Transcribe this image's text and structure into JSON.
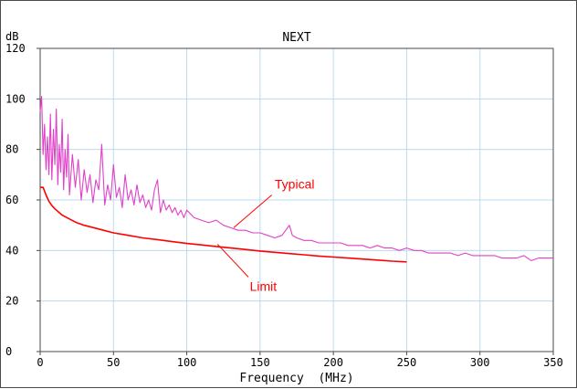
{
  "chart_data": {
    "type": "line",
    "title": "NEXT",
    "ylabel": "dB",
    "xlabel": "Frequency  (MHz)",
    "xlim": [
      0,
      350
    ],
    "ylim": [
      0,
      120
    ],
    "x_ticks": [
      0,
      50,
      100,
      150,
      200,
      250,
      300,
      350
    ],
    "y_ticks": [
      0,
      20,
      40,
      60,
      80,
      100,
      120
    ],
    "x_tick_labels": [
      "0",
      "50",
      "100",
      "150",
      "200",
      "250",
      "300",
      "350"
    ],
    "y_tick_labels": [
      "0",
      "20",
      "40",
      "60",
      "80",
      "100",
      "120"
    ],
    "grid": true,
    "annotations": [
      {
        "text": "Typical",
        "color": "#ff0000"
      },
      {
        "text": "Limit",
        "color": "#ff0000"
      }
    ],
    "series": [
      {
        "name": "Typical",
        "color": "#e040c8",
        "x": [
          0,
          1,
          2,
          3,
          4,
          5,
          6,
          7,
          8,
          9,
          10,
          11,
          12,
          13,
          14,
          15,
          16,
          17,
          18,
          19,
          20,
          22,
          24,
          26,
          28,
          30,
          32,
          34,
          36,
          38,
          40,
          42,
          44,
          46,
          48,
          50,
          52,
          54,
          56,
          58,
          60,
          62,
          64,
          66,
          68,
          70,
          72,
          74,
          76,
          78,
          80,
          82,
          84,
          86,
          88,
          90,
          92,
          94,
          96,
          98,
          100,
          105,
          110,
          115,
          120,
          125,
          130,
          135,
          140,
          145,
          150,
          155,
          160,
          165,
          170,
          172,
          175,
          180,
          185,
          190,
          195,
          200,
          205,
          210,
          215,
          220,
          225,
          230,
          235,
          240,
          245,
          250,
          255,
          260,
          265,
          270,
          275,
          280,
          285,
          290,
          295,
          300,
          305,
          310,
          315,
          320,
          325,
          330,
          335,
          340,
          345,
          350
        ],
        "y": [
          95,
          101,
          78,
          90,
          72,
          85,
          70,
          94,
          68,
          88,
          74,
          96,
          66,
          82,
          71,
          92,
          64,
          80,
          69,
          86,
          62,
          78,
          65,
          76,
          60,
          72,
          63,
          70,
          59,
          68,
          64,
          82,
          58,
          66,
          60,
          74,
          61,
          65,
          57,
          70,
          60,
          64,
          58,
          66,
          59,
          62,
          57,
          60,
          56,
          64,
          68,
          55,
          60,
          56,
          58,
          55,
          57,
          54,
          56,
          53,
          56,
          53,
          52,
          51,
          52,
          50,
          49,
          48,
          48,
          47,
          47,
          46,
          45,
          46,
          50,
          46,
          45,
          44,
          44,
          43,
          43,
          43,
          43,
          42,
          42,
          42,
          41,
          42,
          41,
          41,
          40,
          41,
          40,
          40,
          39,
          39,
          39,
          39,
          38,
          39,
          38,
          38,
          38,
          38,
          37,
          37,
          37,
          38,
          36,
          37,
          37,
          37
        ],
        "range": [
          0,
          350
        ]
      },
      {
        "name": "Limit",
        "color": "#ff0000",
        "x": [
          0,
          2,
          4,
          6,
          8,
          10,
          15,
          20,
          25,
          30,
          40,
          50,
          60,
          70,
          80,
          90,
          100,
          110,
          120,
          130,
          140,
          150,
          160,
          170,
          180,
          190,
          200,
          210,
          220,
          230,
          240,
          250
        ],
        "y": [
          65,
          65,
          62,
          59.5,
          57.8,
          56.5,
          54,
          52.5,
          51,
          50,
          48.5,
          47,
          46,
          45,
          44.3,
          43.5,
          42.8,
          42.2,
          41.6,
          41,
          40.4,
          39.8,
          39.3,
          38.8,
          38.3,
          37.8,
          37.4,
          37,
          36.6,
          36.2,
          35.8,
          35.5
        ],
        "range": [
          0,
          250
        ]
      }
    ]
  }
}
